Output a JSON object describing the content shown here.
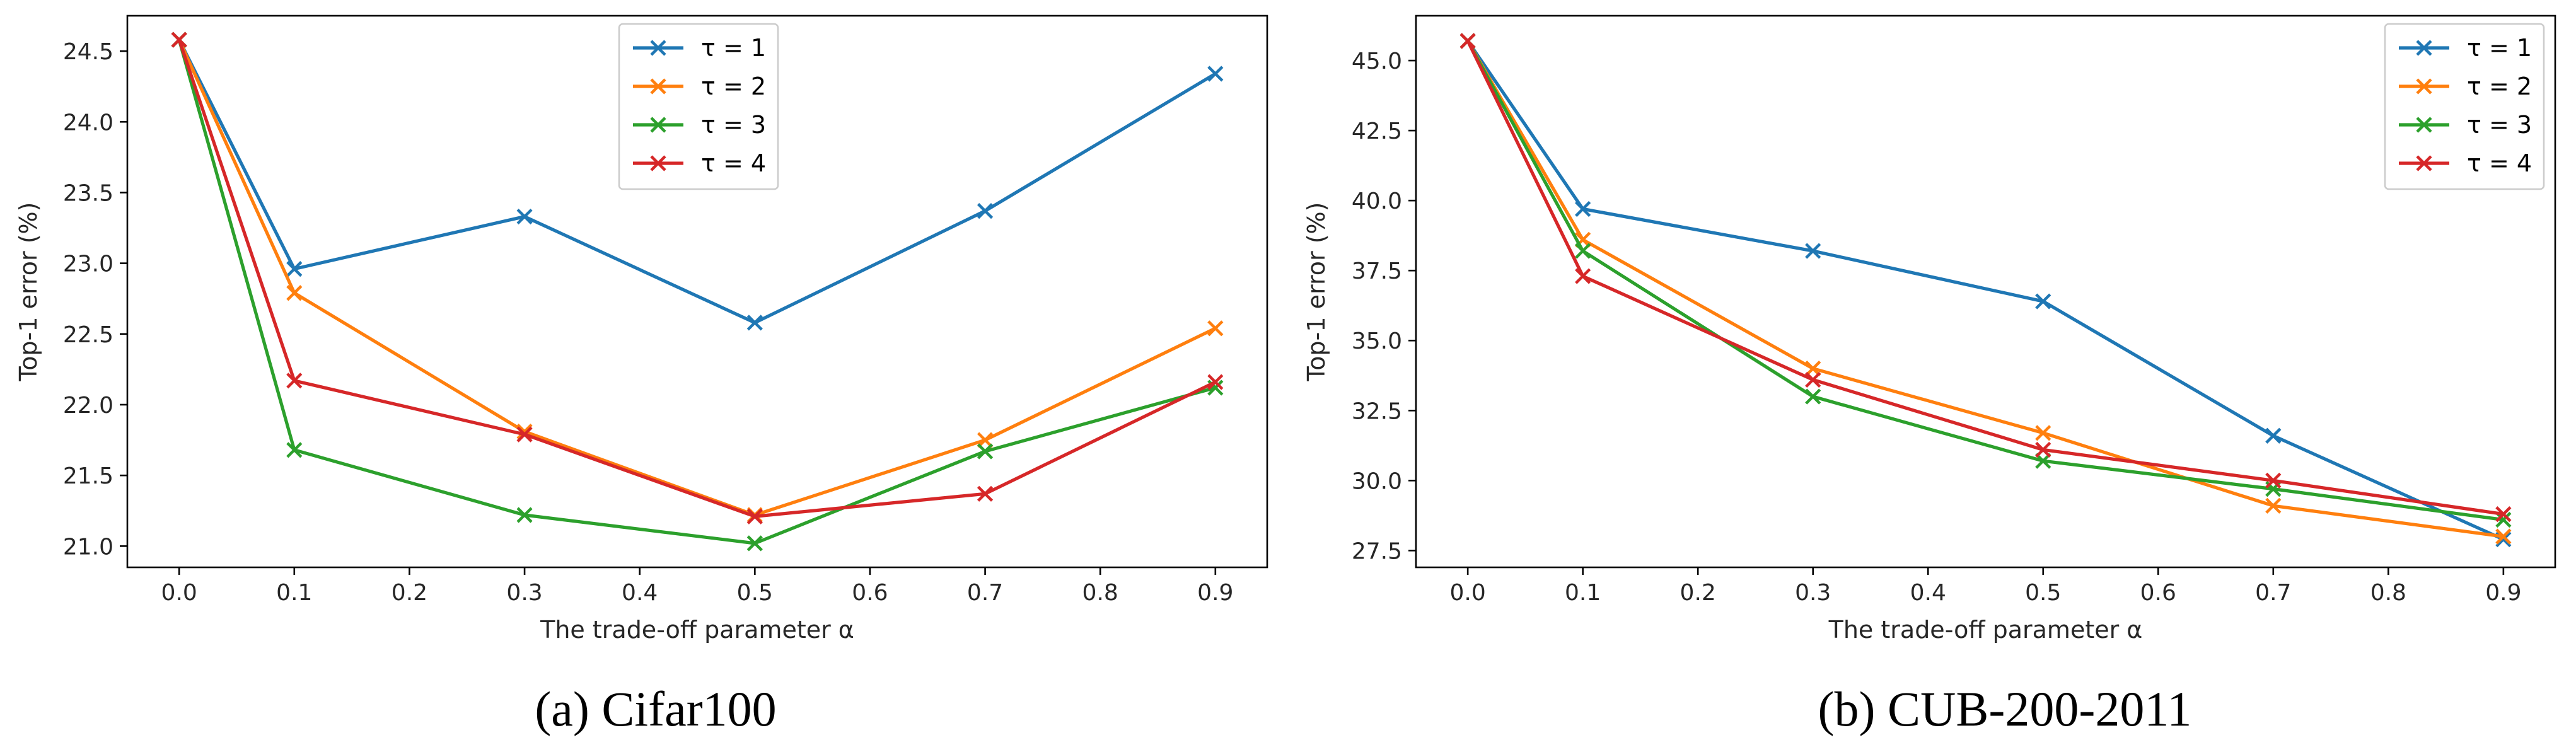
{
  "chart_data": [
    {
      "type": "line",
      "caption": "(a) Cifar100",
      "xlabel": "The trade-off parameter α",
      "ylabel": "Top-1 error (%)",
      "legend_position": "top-center",
      "x": [
        0.0,
        0.1,
        0.3,
        0.5,
        0.7,
        0.9
      ],
      "xlim": [
        -0.045,
        0.945
      ],
      "xticks": [
        0.0,
        0.1,
        0.2,
        0.3,
        0.4,
        0.5,
        0.6,
        0.7,
        0.8,
        0.9
      ],
      "xtick_labels": [
        "0.0",
        "0.1",
        "0.2",
        "0.3",
        "0.4",
        "0.5",
        "0.6",
        "0.7",
        "0.8",
        "0.9"
      ],
      "ylim": [
        20.85,
        24.75
      ],
      "yticks": [
        21.0,
        21.5,
        22.0,
        22.5,
        23.0,
        23.5,
        24.0,
        24.5
      ],
      "ytick_labels": [
        "21.0",
        "21.5",
        "22.0",
        "22.5",
        "23.0",
        "23.5",
        "24.0",
        "24.5"
      ],
      "series": [
        {
          "name": "τ = 1",
          "color": "#1f77b4",
          "values": [
            24.58,
            22.96,
            23.33,
            22.58,
            23.37,
            24.34
          ]
        },
        {
          "name": "τ = 2",
          "color": "#ff7f0e",
          "values": [
            24.58,
            22.79,
            21.81,
            21.22,
            21.75,
            22.54
          ]
        },
        {
          "name": "τ = 3",
          "color": "#2ca02c",
          "values": [
            24.58,
            21.68,
            21.22,
            21.02,
            21.67,
            22.12
          ]
        },
        {
          "name": "τ = 4",
          "color": "#d62728",
          "values": [
            24.58,
            22.17,
            21.79,
            21.21,
            21.37,
            22.16
          ]
        }
      ]
    },
    {
      "type": "line",
      "caption": "(b) CUB-200-2011",
      "xlabel": "The trade-off parameter α",
      "ylabel": "Top-1 error (%)",
      "legend_position": "top-right",
      "x": [
        0.0,
        0.1,
        0.3,
        0.5,
        0.7,
        0.9
      ],
      "xlim": [
        -0.045,
        0.945
      ],
      "xticks": [
        0.0,
        0.1,
        0.2,
        0.3,
        0.4,
        0.5,
        0.6,
        0.7,
        0.8,
        0.9
      ],
      "xtick_labels": [
        "0.0",
        "0.1",
        "0.2",
        "0.3",
        "0.4",
        "0.5",
        "0.6",
        "0.7",
        "0.8",
        "0.9"
      ],
      "ylim": [
        26.9,
        46.6
      ],
      "yticks": [
        27.5,
        30.0,
        32.5,
        35.0,
        37.5,
        40.0,
        42.5,
        45.0
      ],
      "ytick_labels": [
        "27.5",
        "30.0",
        "32.5",
        "35.0",
        "37.5",
        "40.0",
        "42.5",
        "45.0"
      ],
      "series": [
        {
          "name": "τ = 1",
          "color": "#1f77b4",
          "values": [
            45.7,
            39.7,
            38.2,
            36.4,
            31.6,
            27.9
          ]
        },
        {
          "name": "τ = 2",
          "color": "#ff7f0e",
          "values": [
            45.7,
            38.6,
            34.0,
            31.7,
            29.1,
            28.0
          ]
        },
        {
          "name": "τ = 3",
          "color": "#2ca02c",
          "values": [
            45.7,
            38.2,
            33.0,
            30.7,
            29.7,
            28.6
          ]
        },
        {
          "name": "τ = 4",
          "color": "#d62728",
          "values": [
            45.7,
            37.3,
            33.6,
            31.1,
            30.0,
            28.8
          ]
        }
      ]
    }
  ]
}
